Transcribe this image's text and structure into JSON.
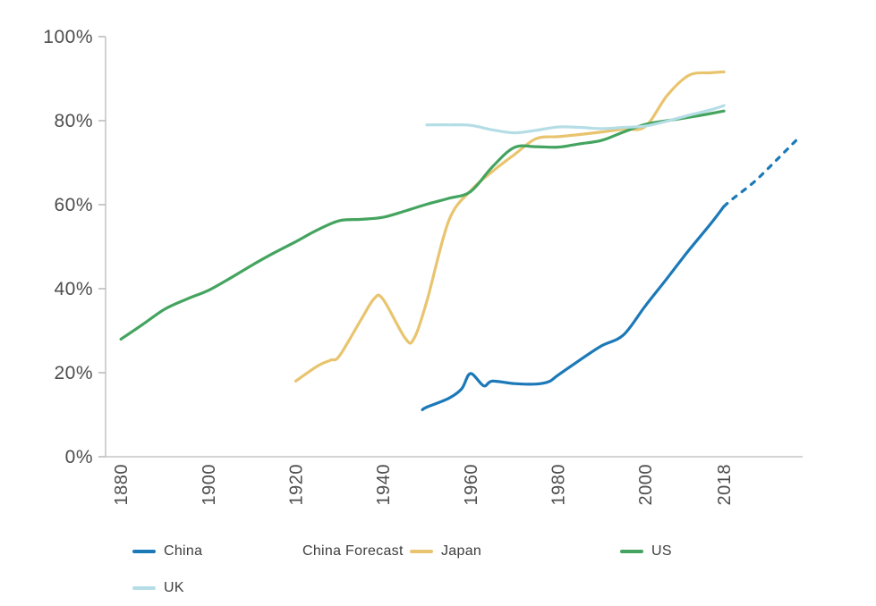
{
  "chart_data": {
    "type": "line",
    "title": "",
    "xlabel": "",
    "ylabel": "",
    "grid": false,
    "legend_position": "bottom-left",
    "xlim": [
      1876.5,
      2036
    ],
    "ylim": [
      0,
      100
    ],
    "x_ticks": [
      1880,
      1900,
      1920,
      1940,
      1960,
      1980,
      2000,
      2018
    ],
    "y_ticks": [
      0,
      20,
      40,
      60,
      80,
      100
    ],
    "y_tick_suffix": "%",
    "axis_line_color": "#c6c6c6",
    "tick_color": "#bdbdbd",
    "axis_text_color": "#4d4d4d",
    "series": [
      {
        "name": "China",
        "color": "#1b79b8",
        "dash": false,
        "points": [
          [
            1949,
            11.2
          ],
          [
            1950,
            11.8
          ],
          [
            1955,
            13.9
          ],
          [
            1958,
            16.2
          ],
          [
            1960,
            19.8
          ],
          [
            1963,
            16.9
          ],
          [
            1965,
            18.0
          ],
          [
            1970,
            17.4
          ],
          [
            1975,
            17.3
          ],
          [
            1978,
            17.9
          ],
          [
            1980,
            19.4
          ],
          [
            1985,
            23.0
          ],
          [
            1990,
            26.4
          ],
          [
            1995,
            29.0
          ],
          [
            2000,
            35.9
          ],
          [
            2005,
            42.5
          ],
          [
            2010,
            49.2
          ],
          [
            2015,
            55.5
          ],
          [
            2018,
            59.6
          ]
        ]
      },
      {
        "name": "China Forecast",
        "color": "#1b79b8",
        "dash": true,
        "points": [
          [
            2018,
            59.6
          ],
          [
            2020,
            61.4
          ],
          [
            2025,
            65.5
          ],
          [
            2030,
            70.6
          ],
          [
            2035,
            75.8
          ]
        ]
      },
      {
        "name": "Japan",
        "color": "#e9c46f",
        "dash": false,
        "points": [
          [
            1920,
            18.0
          ],
          [
            1925,
            21.6
          ],
          [
            1928,
            23.0
          ],
          [
            1930,
            24.0
          ],
          [
            1935,
            32.7
          ],
          [
            1938,
            37.7
          ],
          [
            1940,
            37.5
          ],
          [
            1945,
            28.3
          ],
          [
            1947,
            28.0
          ],
          [
            1950,
            37.0
          ],
          [
            1955,
            56.1
          ],
          [
            1960,
            63.3
          ],
          [
            1965,
            67.9
          ],
          [
            1970,
            71.9
          ],
          [
            1975,
            75.7
          ],
          [
            1980,
            76.2
          ],
          [
            1985,
            76.7
          ],
          [
            1990,
            77.3
          ],
          [
            1995,
            78.0
          ],
          [
            2000,
            78.6
          ],
          [
            2005,
            86.0
          ],
          [
            2010,
            90.8
          ],
          [
            2015,
            91.4
          ],
          [
            2018,
            91.6
          ]
        ]
      },
      {
        "name": "US",
        "color": "#44a45f",
        "dash": false,
        "points": [
          [
            1880,
            28.0
          ],
          [
            1885,
            31.5
          ],
          [
            1890,
            35.1
          ],
          [
            1895,
            37.5
          ],
          [
            1900,
            39.6
          ],
          [
            1905,
            42.5
          ],
          [
            1910,
            45.6
          ],
          [
            1915,
            48.5
          ],
          [
            1920,
            51.2
          ],
          [
            1925,
            54.0
          ],
          [
            1930,
            56.2
          ],
          [
            1935,
            56.5
          ],
          [
            1940,
            57.0
          ],
          [
            1945,
            58.5
          ],
          [
            1950,
            60.1
          ],
          [
            1955,
            61.5
          ],
          [
            1960,
            63.1
          ],
          [
            1965,
            69.0
          ],
          [
            1970,
            73.6
          ],
          [
            1975,
            73.8
          ],
          [
            1980,
            73.7
          ],
          [
            1985,
            74.5
          ],
          [
            1990,
            75.3
          ],
          [
            1995,
            77.3
          ],
          [
            2000,
            79.1
          ],
          [
            2005,
            80.0
          ],
          [
            2010,
            80.8
          ],
          [
            2015,
            81.7
          ],
          [
            2018,
            82.3
          ]
        ]
      },
      {
        "name": "UK",
        "color": "#b5dde6",
        "dash": false,
        "points": [
          [
            1950,
            79.0
          ],
          [
            1955,
            79.0
          ],
          [
            1960,
            78.9
          ],
          [
            1965,
            77.8
          ],
          [
            1970,
            77.1
          ],
          [
            1975,
            77.7
          ],
          [
            1980,
            78.5
          ],
          [
            1985,
            78.4
          ],
          [
            1990,
            78.1
          ],
          [
            1995,
            78.4
          ],
          [
            2000,
            78.7
          ],
          [
            2005,
            79.9
          ],
          [
            2010,
            81.3
          ],
          [
            2015,
            82.6
          ],
          [
            2018,
            83.6
          ]
        ]
      }
    ],
    "legend": [
      {
        "label": "China",
        "series": "China"
      },
      {
        "label": "China Forecast",
        "series": "China Forecast"
      },
      {
        "label": "Japan",
        "series": "Japan"
      },
      {
        "label": "US",
        "series": "US"
      },
      {
        "label": "UK",
        "series": "UK"
      }
    ]
  }
}
